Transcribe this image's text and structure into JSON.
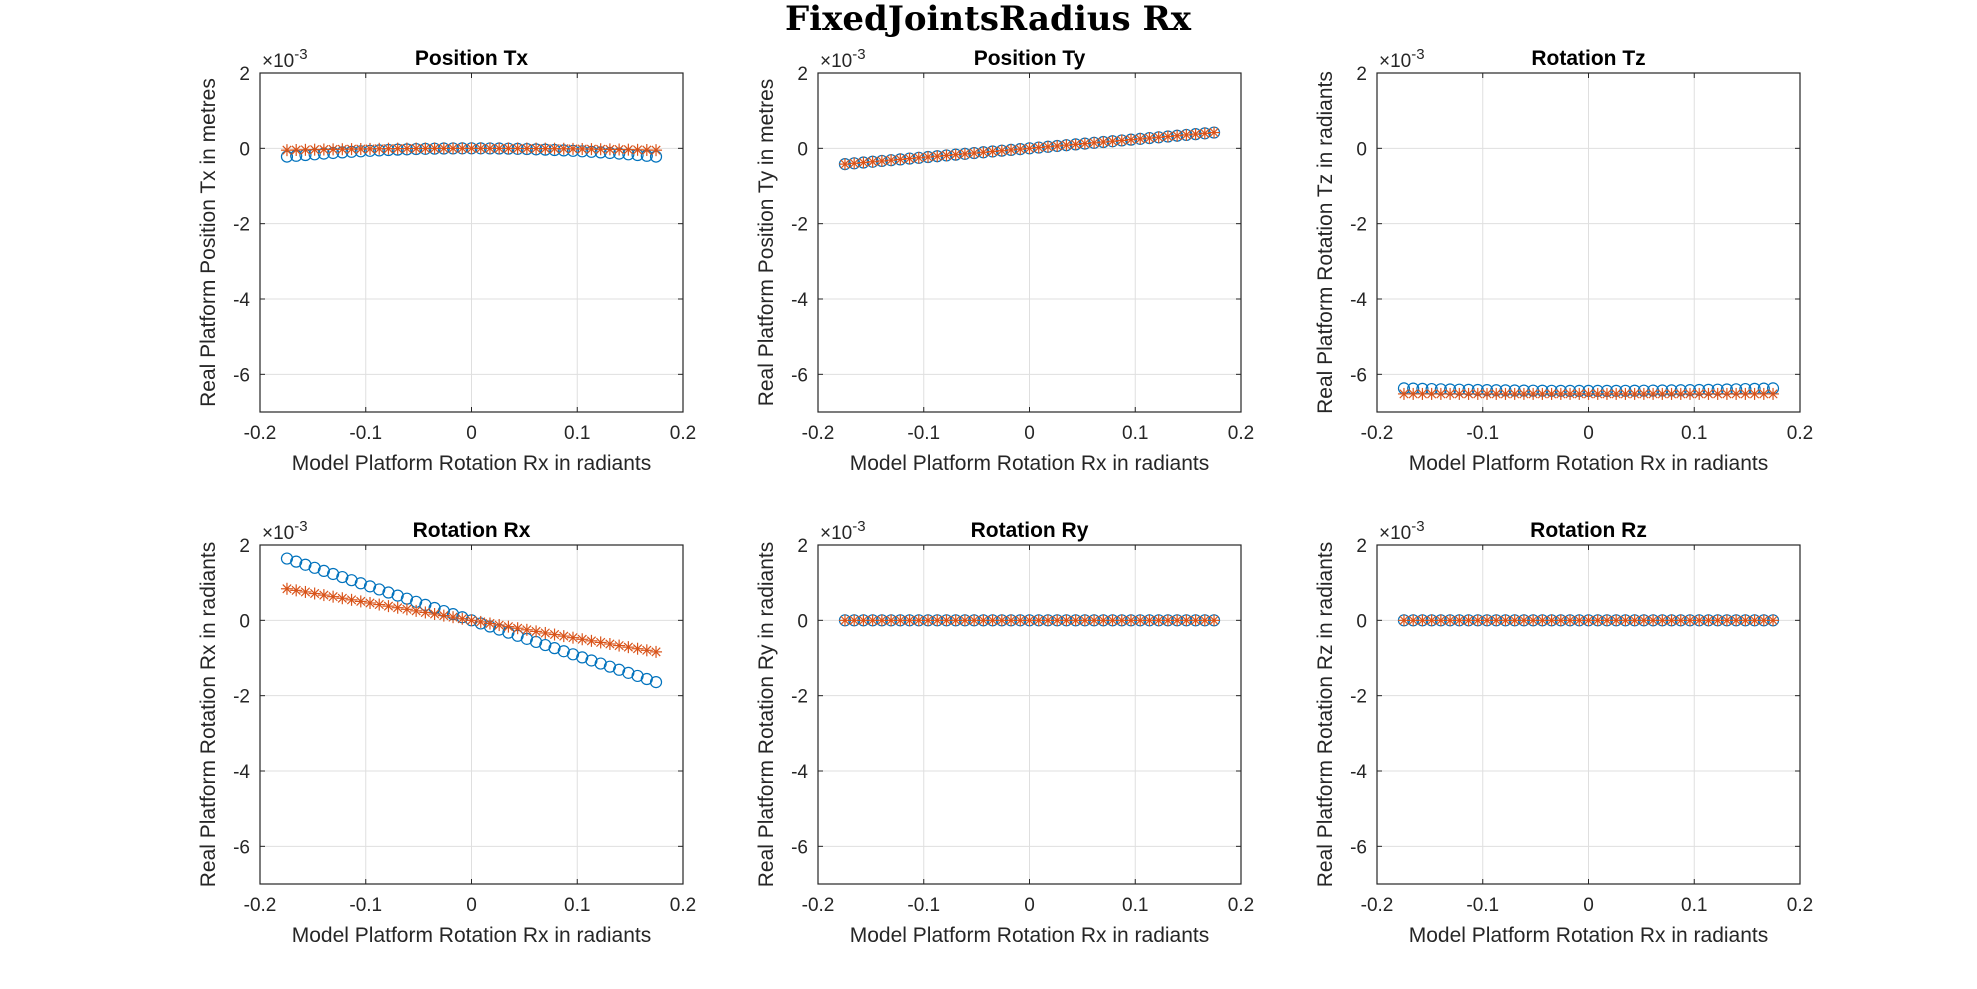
{
  "figure_title": "FixedJointsRadius Rx",
  "colors": {
    "real_series": "#0072BD",
    "model_series": "#D95319",
    "grid": "#dfdfdf",
    "axes": "#262626"
  },
  "chart_data": [
    {
      "type": "scatter",
      "title": "Position Tx",
      "xlabel": "Model Platform Rotation Rx in radiants",
      "ylabel": "Real Platform Position Tx in metres",
      "xlim": [
        -0.2,
        0.2
      ],
      "ylim": [
        -7,
        2
      ],
      "xticks": [
        "-0.2",
        "-0.1",
        "0",
        "0.1",
        "0.2"
      ],
      "yticks": [
        "2",
        "0",
        "-2",
        "-4",
        "-6"
      ],
      "y_exponent": "×10",
      "y_exponent_power": "-3",
      "grid": true,
      "series": [
        {
          "marker": "circle",
          "color": "#0072BD",
          "x_range": [
            -0.1745,
            0.1745
          ],
          "count": 41,
          "fit": "quadratic",
          "y_coeffs": [
            0.0,
            0.0,
            -7.2
          ]
        },
        {
          "marker": "asterisk",
          "color": "#D95319",
          "x_range": [
            -0.1745,
            0.1745
          ],
          "count": 41,
          "fit": "quadratic",
          "y_coeffs": [
            0.0,
            0.0,
            -1.6
          ]
        }
      ]
    },
    {
      "type": "scatter",
      "title": "Position Ty",
      "xlabel": "Model Platform Rotation Rx in radiants",
      "ylabel": "Real Platform Position Ty in metres",
      "xlim": [
        -0.2,
        0.2
      ],
      "ylim": [
        -7,
        2
      ],
      "xticks": [
        "-0.2",
        "-0.1",
        "0",
        "0.1",
        "0.2"
      ],
      "yticks": [
        "2",
        "0",
        "-2",
        "-4",
        "-6"
      ],
      "y_exponent": "×10",
      "y_exponent_power": "-3",
      "grid": true,
      "series": [
        {
          "marker": "circle",
          "color": "#0072BD",
          "x_range": [
            -0.1745,
            0.1745
          ],
          "count": 41,
          "fit": "quadratic",
          "y_coeffs": [
            0.0,
            2.4,
            0.0
          ]
        },
        {
          "marker": "asterisk",
          "color": "#D95319",
          "x_range": [
            -0.1745,
            0.1745
          ],
          "count": 41,
          "fit": "quadratic",
          "y_coeffs": [
            0.0,
            2.4,
            0.0
          ]
        }
      ]
    },
    {
      "type": "scatter",
      "title": "Rotation Tz",
      "xlabel": "Model Platform Rotation Rx in radiants",
      "ylabel": "Real Platform Rotation Tz in radiants",
      "xlim": [
        -0.2,
        0.2
      ],
      "ylim": [
        -7,
        2
      ],
      "xticks": [
        "-0.2",
        "-0.1",
        "0",
        "0.1",
        "0.2"
      ],
      "yticks": [
        "2",
        "0",
        "-2",
        "-4",
        "-6"
      ],
      "y_exponent": "×10",
      "y_exponent_power": "-3",
      "grid": true,
      "series": [
        {
          "marker": "circle",
          "color": "#0072BD",
          "x_range": [
            -0.1745,
            0.1745
          ],
          "count": 41,
          "fit": "quadratic",
          "y_coeffs": [
            -6.44,
            0.0,
            2.2
          ]
        },
        {
          "marker": "asterisk",
          "color": "#D95319",
          "x_range": [
            -0.1745,
            0.1745
          ],
          "count": 41,
          "fit": "quadratic",
          "y_coeffs": [
            -6.52,
            0.0,
            0.0
          ]
        }
      ]
    },
    {
      "type": "scatter",
      "title": "Rotation Rx",
      "xlabel": "Model Platform Rotation Rx in radiants",
      "ylabel": "Real Platform Rotation Rx in radiants",
      "xlim": [
        -0.2,
        0.2
      ],
      "ylim": [
        -7,
        2
      ],
      "xticks": [
        "-0.2",
        "-0.1",
        "0",
        "0.1",
        "0.2"
      ],
      "yticks": [
        "2",
        "0",
        "-2",
        "-4",
        "-6"
      ],
      "y_exponent": "×10",
      "y_exponent_power": "-3",
      "grid": true,
      "series": [
        {
          "marker": "circle",
          "color": "#0072BD",
          "x_range": [
            -0.1745,
            0.1745
          ],
          "count": 41,
          "fit": "quadratic",
          "y_coeffs": [
            0.0,
            -9.4,
            0.0
          ]
        },
        {
          "marker": "asterisk",
          "color": "#D95319",
          "x_range": [
            -0.1745,
            0.1745
          ],
          "count": 41,
          "fit": "quadratic",
          "y_coeffs": [
            0.0,
            -4.8,
            0.0
          ]
        }
      ]
    },
    {
      "type": "scatter",
      "title": "Rotation Ry",
      "xlabel": "Model Platform Rotation Rx in radiants",
      "ylabel": "Real Platform Rotation Ry in radiants",
      "xlim": [
        -0.2,
        0.2
      ],
      "ylim": [
        -7,
        2
      ],
      "xticks": [
        "-0.2",
        "-0.1",
        "0",
        "0.1",
        "0.2"
      ],
      "yticks": [
        "2",
        "0",
        "-2",
        "-4",
        "-6"
      ],
      "y_exponent": "×10",
      "y_exponent_power": "-3",
      "grid": true,
      "series": [
        {
          "marker": "circle",
          "color": "#0072BD",
          "x_range": [
            -0.1745,
            0.1745
          ],
          "count": 41,
          "fit": "quadratic",
          "y_coeffs": [
            0.0,
            0.0,
            0.0
          ]
        },
        {
          "marker": "asterisk",
          "color": "#D95319",
          "x_range": [
            -0.1745,
            0.1745
          ],
          "count": 41,
          "fit": "quadratic",
          "y_coeffs": [
            0.0,
            0.0,
            0.0
          ]
        }
      ]
    },
    {
      "type": "scatter",
      "title": "Rotation Rz",
      "xlabel": "Model Platform Rotation Rx in radiants",
      "ylabel": "Real Platform Rotation Rz in radiants",
      "xlim": [
        -0.2,
        0.2
      ],
      "ylim": [
        -7,
        2
      ],
      "xticks": [
        "-0.2",
        "-0.1",
        "0",
        "0.1",
        "0.2"
      ],
      "yticks": [
        "2",
        "0",
        "-2",
        "-4",
        "-6"
      ],
      "y_exponent": "×10",
      "y_exponent_power": "-3",
      "grid": true,
      "series": [
        {
          "marker": "circle",
          "color": "#0072BD",
          "x_range": [
            -0.1745,
            0.1745
          ],
          "count": 41,
          "fit": "quadratic",
          "y_coeffs": [
            0.0,
            0.0,
            0.0
          ]
        },
        {
          "marker": "asterisk",
          "color": "#D95319",
          "x_range": [
            -0.1745,
            0.1745
          ],
          "count": 41,
          "fit": "quadratic",
          "y_coeffs": [
            0.0,
            0.0,
            0.0
          ]
        }
      ]
    }
  ]
}
